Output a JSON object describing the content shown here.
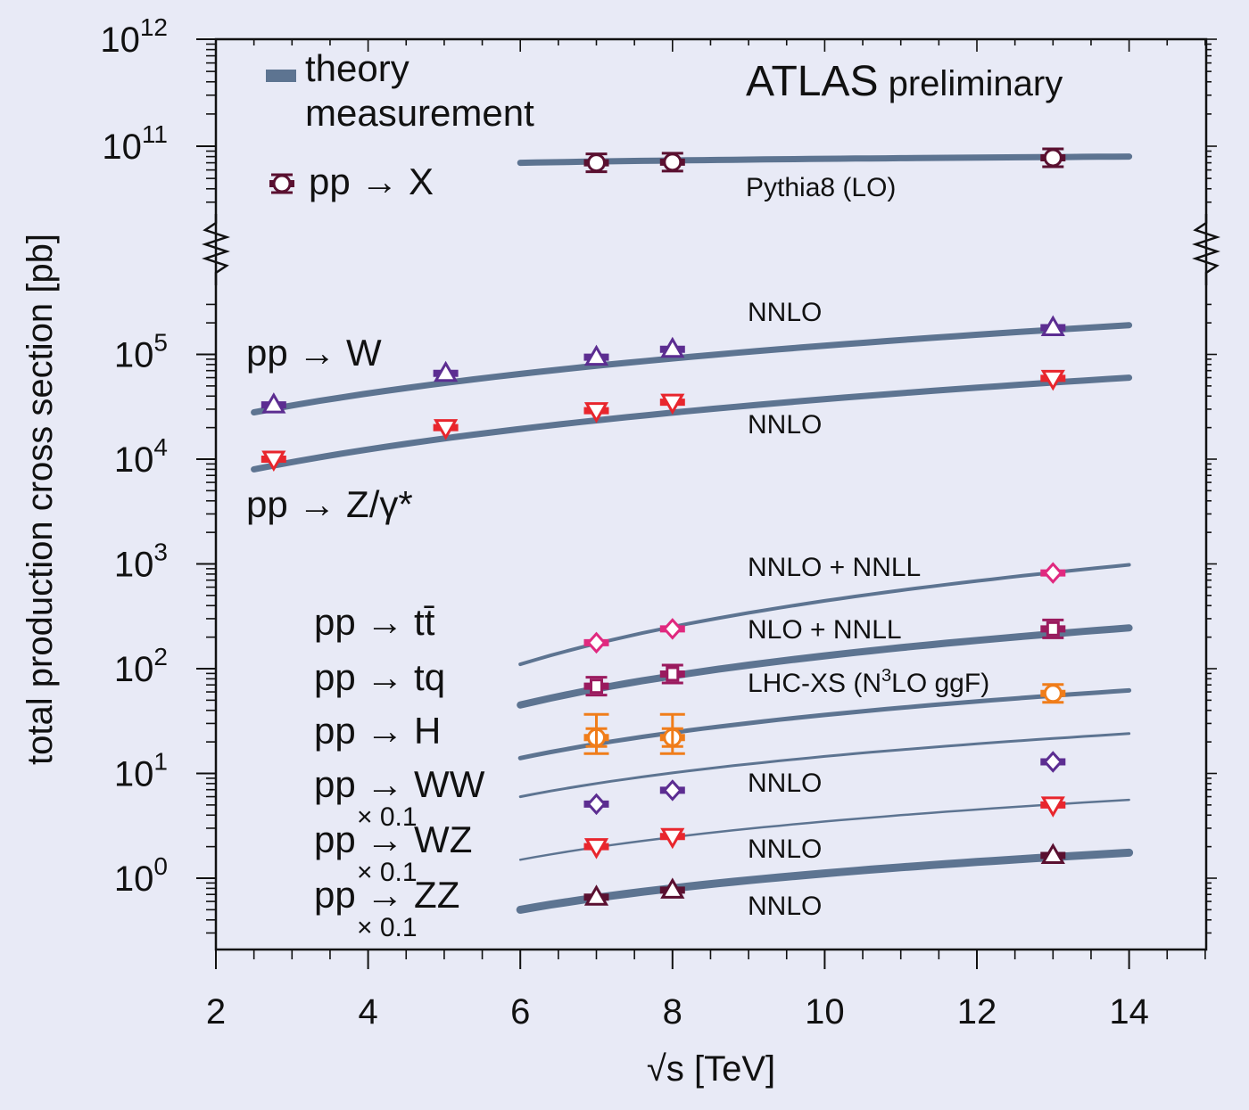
{
  "chart_data": {
    "type": "scatter",
    "title": "ATLAS",
    "subtitle": "preliminary",
    "xlabel": "√s [TeV]",
    "ylabel": "total production cross section [pb]",
    "xlim": [
      2,
      15
    ],
    "ylim": [
      0.3,
      1000000000000
    ],
    "yscale": "log (broken axis between 10^5 and 10^11)",
    "x_ticks": [
      "2",
      "4",
      "6",
      "8",
      "10",
      "12",
      "14"
    ],
    "y_ticks": [
      {
        "base": "10",
        "exp": "0",
        "value": 1
      },
      {
        "base": "10",
        "exp": "1",
        "value": 10
      },
      {
        "base": "10",
        "exp": "2",
        "value": 100
      },
      {
        "base": "10",
        "exp": "3",
        "value": 1000
      },
      {
        "base": "10",
        "exp": "4",
        "value": 10000
      },
      {
        "base": "10",
        "exp": "5",
        "value": 100000
      },
      {
        "base": "10",
        "exp": "11",
        "value": 100000000000
      },
      {
        "base": "10",
        "exp": "12",
        "value": 1000000000000
      }
    ],
    "legend": {
      "theory": "theory",
      "measurement": "measurement",
      "pp_prefix": "pp",
      "arrow": "→",
      "x_target": "X",
      "position": "top-left"
    },
    "process_labels": [
      {
        "key": "W",
        "pp": "pp",
        "arrow": "→",
        "target": "W"
      },
      {
        "key": "Z",
        "pp": "pp",
        "arrow": "→",
        "target": "Z/γ*"
      },
      {
        "key": "tt",
        "pp": "pp",
        "arrow": "→",
        "target": "tt̄"
      },
      {
        "key": "tq",
        "pp": "pp",
        "arrow": "→",
        "target": "tq"
      },
      {
        "key": "H",
        "pp": "pp",
        "arrow": "→",
        "target": "H"
      },
      {
        "key": "WW",
        "pp": "pp",
        "arrow": "→",
        "target": "WW",
        "scale": "× 0.1"
      },
      {
        "key": "WZ",
        "pp": "pp",
        "arrow": "→",
        "target": "WZ",
        "scale": "× 0.1"
      },
      {
        "key": "ZZ",
        "pp": "pp",
        "arrow": "→",
        "target": "ZZ",
        "scale": "× 0.1"
      }
    ],
    "theory_labels": [
      {
        "key": "X",
        "text": "Pythia8 (LO)"
      },
      {
        "key": "W",
        "text": "NNLO"
      },
      {
        "key": "Z",
        "text": "NNLO"
      },
      {
        "key": "tt",
        "text": "NNLO + NNLL"
      },
      {
        "key": "tq",
        "text": "NLO + NNLL"
      },
      {
        "key": "H",
        "text": "LHC-XS (N",
        "sup": "3",
        "tail": "LO ggF)"
      },
      {
        "key": "WW",
        "text": "NNLO"
      },
      {
        "key": "WZ",
        "text": "NNLO"
      },
      {
        "key": "ZZ",
        "text": "NNLO"
      }
    ],
    "series": [
      {
        "name": "pp → X",
        "marker": "circle",
        "color": "#5a1030",
        "theory": {
          "x": [
            6,
            14
          ],
          "y_start": 70000000000,
          "y_end": 80000000000
        },
        "points": [
          {
            "x": 7,
            "y": 70000000000
          },
          {
            "x": 8,
            "y": 71000000000
          },
          {
            "x": 13,
            "y": 78000000000
          }
        ]
      },
      {
        "name": "pp → W",
        "marker": "triangle-up",
        "color": "#5c2d91",
        "theory": {
          "x": [
            2.5,
            14
          ],
          "y_start": 28000,
          "y_end": 190000
        },
        "points": [
          {
            "x": 2.76,
            "y": 33000
          },
          {
            "x": 5.02,
            "y": 66000
          },
          {
            "x": 7,
            "y": 94000
          },
          {
            "x": 8,
            "y": 112000
          },
          {
            "x": 13,
            "y": 180000
          }
        ]
      },
      {
        "name": "pp → Z/γ*",
        "marker": "triangle-down",
        "color": "#e8262d",
        "theory": {
          "x": [
            2.5,
            14
          ],
          "y_start": 8000,
          "y_end": 60000
        },
        "points": [
          {
            "x": 2.76,
            "y": 10000
          },
          {
            "x": 5.02,
            "y": 20000
          },
          {
            "x": 7,
            "y": 29000
          },
          {
            "x": 8,
            "y": 35000
          },
          {
            "x": 13,
            "y": 59000
          }
        ]
      },
      {
        "name": "pp → tt̄",
        "marker": "diamond",
        "color": "#e0297f",
        "theory": {
          "x": [
            6,
            14
          ],
          "y_start": 110,
          "y_end": 980
        },
        "points": [
          {
            "x": 7,
            "y": 177
          },
          {
            "x": 8,
            "y": 240
          },
          {
            "x": 13,
            "y": 820
          }
        ]
      },
      {
        "name": "pp → tq",
        "marker": "square",
        "color": "#9a1a5e",
        "theory": {
          "x": [
            6,
            14
          ],
          "y_start": 45,
          "y_end": 245
        },
        "points": [
          {
            "x": 7,
            "y": 68
          },
          {
            "x": 8,
            "y": 89
          },
          {
            "x": 13,
            "y": 240
          }
        ]
      },
      {
        "name": "pp → H",
        "marker": "circle",
        "color": "#f07d1a",
        "theory": {
          "x": [
            6,
            14
          ],
          "y_start": 14,
          "y_end": 62
        },
        "points": [
          {
            "x": 7,
            "y": 22
          },
          {
            "x": 8,
            "y": 22
          },
          {
            "x": 13,
            "y": 58
          }
        ]
      },
      {
        "name": "pp → WW × 0.1",
        "marker": "diamond",
        "color": "#5c2d91",
        "theory": {
          "x": [
            6,
            14
          ],
          "y_start": 6,
          "y_end": 24
        },
        "points": [
          {
            "x": 7,
            "y": 5.1
          },
          {
            "x": 8,
            "y": 6.9
          },
          {
            "x": 13,
            "y": 12.9
          }
        ]
      },
      {
        "name": "pp → WZ × 0.1",
        "marker": "triangle-down",
        "color": "#e8262d",
        "theory": {
          "x": [
            6,
            14
          ],
          "y_start": 1.5,
          "y_end": 5.6
        },
        "points": [
          {
            "x": 7,
            "y": 2.0
          },
          {
            "x": 8,
            "y": 2.5
          },
          {
            "x": 13,
            "y": 5.0
          }
        ]
      },
      {
        "name": "pp → ZZ × 0.1",
        "marker": "triangle-up",
        "color": "#5a1030",
        "theory": {
          "x": [
            6,
            14
          ],
          "y_start": 0.5,
          "y_end": 1.75
        },
        "points": [
          {
            "x": 7,
            "y": 0.66
          },
          {
            "x": 8,
            "y": 0.77
          },
          {
            "x": 13,
            "y": 1.65
          }
        ]
      }
    ]
  }
}
